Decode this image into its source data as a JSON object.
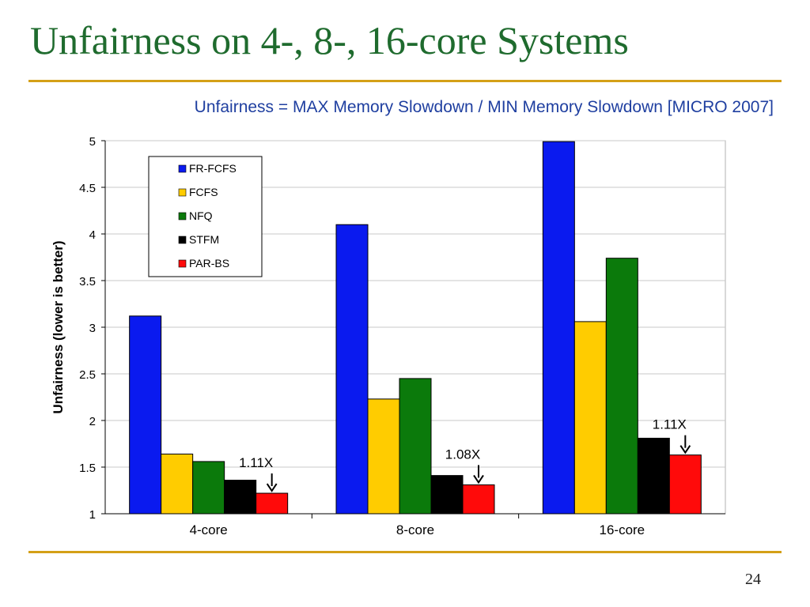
{
  "slide": {
    "title": "Unfairness on 4-, 8-, 16-core Systems",
    "subtitle": "Unfairness = MAX Memory Slowdown / MIN Memory Slowdown [MICRO 2007]",
    "page_number": "24",
    "title_color": "#1f6b2e",
    "rule_color": "#d4a017"
  },
  "chart_data": {
    "type": "bar",
    "title": "",
    "xlabel": "",
    "ylabel": "Unfairness (lower is better)",
    "categories": [
      "4-core",
      "8-core",
      "16-core"
    ],
    "ylim": [
      1,
      5
    ],
    "yticks": [
      "1",
      "1.5",
      "2",
      "2.5",
      "3",
      "3.5",
      "4",
      "4.5",
      "5"
    ],
    "grid": true,
    "legend_position": "top-left",
    "series": [
      {
        "name": "FR-FCFS",
        "color": "#0a1aef",
        "values": [
          3.12,
          4.1,
          4.99
        ]
      },
      {
        "name": "FCFS",
        "color": "#ffcc00",
        "values": [
          1.64,
          2.23,
          3.06
        ]
      },
      {
        "name": "NFQ",
        "color": "#0b7a0b",
        "values": [
          1.56,
          2.45,
          3.74
        ]
      },
      {
        "name": "STFM",
        "color": "#000000",
        "values": [
          1.36,
          1.41,
          1.81
        ]
      },
      {
        "name": "PAR-BS",
        "color": "#ff0a0a",
        "values": [
          1.22,
          1.31,
          1.63
        ]
      }
    ],
    "annotations": [
      {
        "category": "4-core",
        "text": "1.11X"
      },
      {
        "category": "8-core",
        "text": "1.08X"
      },
      {
        "category": "16-core",
        "text": "1.11X"
      }
    ]
  }
}
